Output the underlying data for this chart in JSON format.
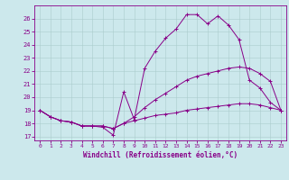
{
  "xlabel": "Windchill (Refroidissement éolien,°C)",
  "bg_color": "#cce8ec",
  "line_color": "#880088",
  "grid_color": "#aacccc",
  "xlim": [
    -0.5,
    23.5
  ],
  "ylim": [
    16.7,
    27.0
  ],
  "yticks": [
    17,
    18,
    19,
    20,
    21,
    22,
    23,
    24,
    25,
    26
  ],
  "xticks": [
    0,
    1,
    2,
    3,
    4,
    5,
    6,
    7,
    8,
    9,
    10,
    11,
    12,
    13,
    14,
    15,
    16,
    17,
    18,
    19,
    20,
    21,
    22,
    23
  ],
  "series1": {
    "x": [
      0,
      1,
      2,
      3,
      4,
      5,
      6,
      7,
      8,
      9,
      10,
      11,
      12,
      13,
      14,
      15,
      16,
      17,
      18,
      19,
      20,
      21,
      22,
      23
    ],
    "y": [
      19.0,
      18.5,
      18.2,
      18.1,
      17.8,
      17.8,
      17.8,
      17.6,
      18.0,
      18.2,
      18.4,
      18.6,
      18.7,
      18.8,
      19.0,
      19.1,
      19.2,
      19.3,
      19.4,
      19.5,
      19.5,
      19.4,
      19.2,
      19.0
    ]
  },
  "series2": {
    "x": [
      0,
      1,
      2,
      3,
      4,
      5,
      6,
      7,
      8,
      9,
      10,
      11,
      12,
      13,
      14,
      15,
      16,
      17,
      18,
      19,
      20,
      21,
      22,
      23
    ],
    "y": [
      19.0,
      18.5,
      18.2,
      18.1,
      17.8,
      17.8,
      17.8,
      17.6,
      18.0,
      18.5,
      19.2,
      19.8,
      20.3,
      20.8,
      21.3,
      21.6,
      21.8,
      22.0,
      22.2,
      22.3,
      22.2,
      21.8,
      21.2,
      19.0
    ]
  },
  "series3": {
    "x": [
      0,
      1,
      2,
      3,
      4,
      5,
      6,
      7,
      8,
      9,
      10,
      11,
      12,
      13,
      14,
      15,
      16,
      17,
      18,
      19,
      20,
      21,
      22,
      23
    ],
    "y": [
      19.0,
      18.5,
      18.2,
      18.1,
      17.8,
      17.8,
      17.7,
      17.1,
      20.4,
      18.3,
      22.2,
      23.5,
      24.5,
      25.2,
      26.3,
      26.3,
      25.6,
      26.2,
      25.5,
      24.4,
      21.3,
      20.7,
      19.6,
      19.0
    ]
  }
}
